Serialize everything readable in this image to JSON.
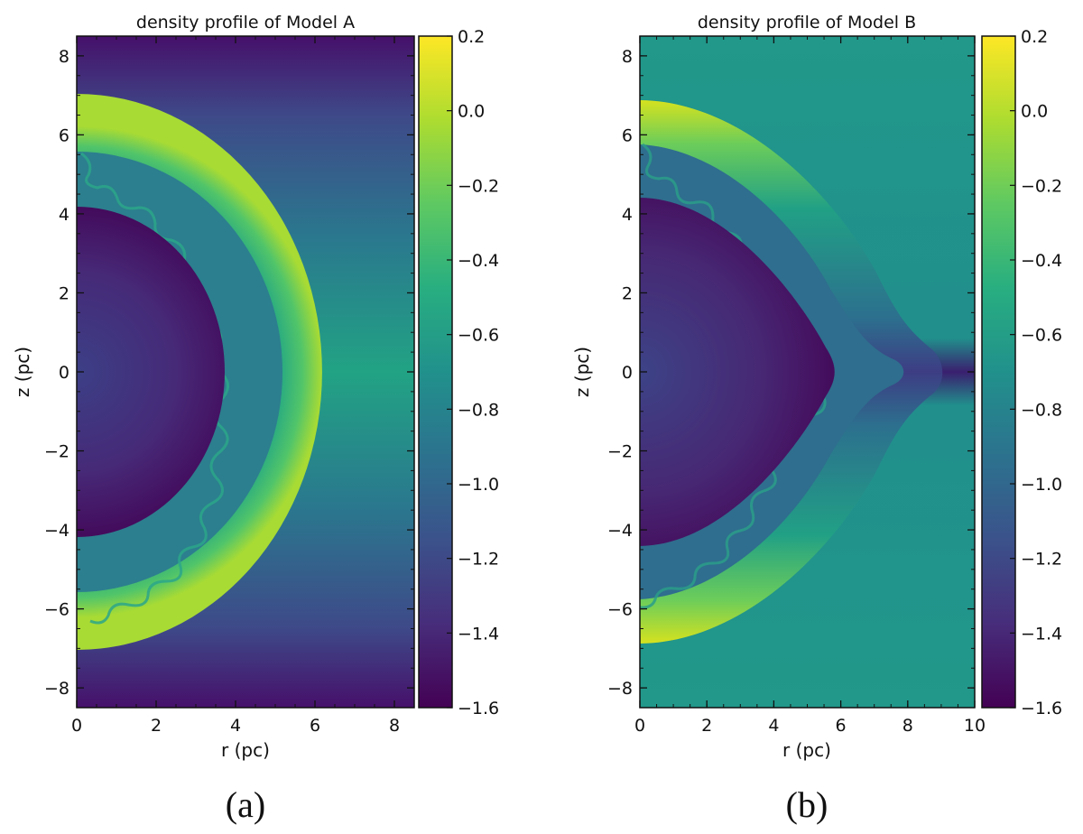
{
  "chart_data": [
    {
      "type": "heatmap",
      "panel_label": "(a)",
      "title": "density profile of Model A",
      "xlabel": "r (pc)",
      "ylabel": "z (pc)",
      "xlim": [
        0,
        8.5
      ],
      "ylim": [
        -8.5,
        8.5
      ],
      "xticks": [
        0,
        2,
        4,
        6,
        8
      ],
      "yticks": [
        -8,
        -6,
        -4,
        -2,
        0,
        2,
        4,
        6,
        8
      ],
      "colorbar": {
        "vmin": -1.6,
        "vmax": 0.2,
        "ticks": [
          "0.2",
          "0.0",
          "−0.2",
          "−0.4",
          "−0.6",
          "−0.8",
          "−1.0",
          "−1.2",
          "−1.4",
          "−1.6"
        ],
        "colormap": "viridis"
      },
      "structure": {
        "shape": "sphere",
        "inner_cavity_radius_pc": 4.2,
        "contact_discontinuity_radius_pc": 5.2,
        "outer_shock_radius_pc": 7.05,
        "outer_shock_r_at_equator_pc": 6.3
      }
    },
    {
      "type": "heatmap",
      "panel_label": "(b)",
      "title": "density profile of Model B",
      "xlabel": "r (pc)",
      "ylabel": "z (pc)",
      "xlim": [
        0,
        10
      ],
      "ylim": [
        -8.5,
        8.5
      ],
      "xticks": [
        0,
        2,
        4,
        6,
        8,
        10
      ],
      "yticks": [
        -8,
        -6,
        -4,
        -2,
        0,
        2,
        4,
        6,
        8
      ],
      "colorbar": {
        "vmin": -1.6,
        "vmax": 0.2,
        "ticks": [
          "0.2",
          "0.0",
          "−0.2",
          "−0.4",
          "−0.6",
          "−0.8",
          "−1.0",
          "−1.2",
          "−1.4",
          "−1.6"
        ],
        "colormap": "viridis"
      },
      "structure": {
        "shape": "pointed-lens",
        "inner_cavity_z_pc": 4.45,
        "inner_cavity_r_at_equator_pc": 5.8,
        "outer_shock_z_pc": 6.9,
        "outer_shock_r_at_equator_pc": 9.1
      }
    }
  ],
  "colors": {
    "viridis_dark": "#440154",
    "viridis_mid": "#21918c",
    "viridis_light": "#fde725"
  }
}
